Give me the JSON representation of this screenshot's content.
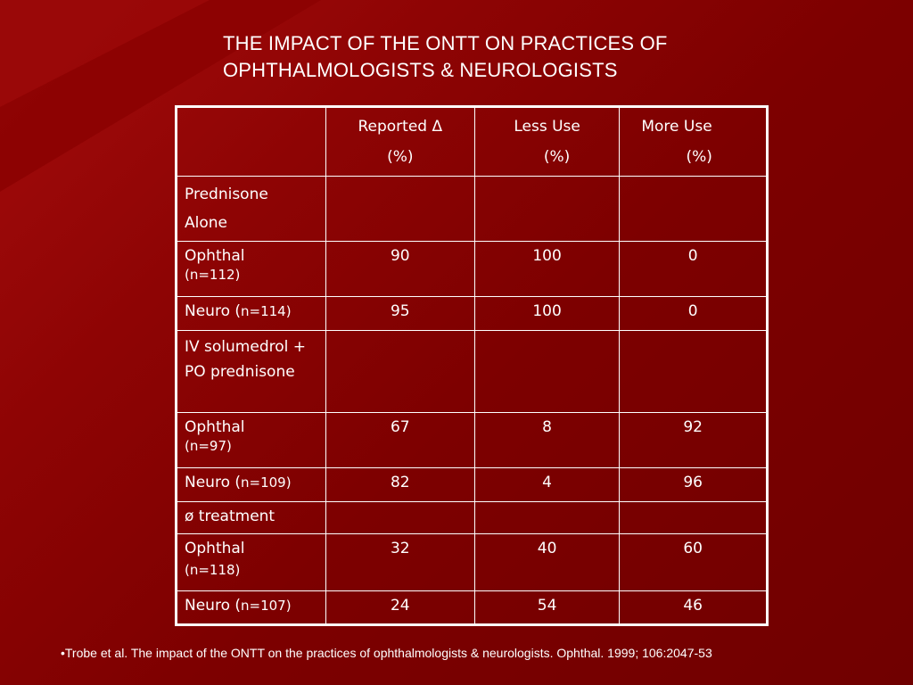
{
  "title": {
    "line1": "THE IMPACT OF THE ONTT ON PRACTICES OF",
    "line2": "OPHTHALMOLOGISTS & NEUROLOGISTS"
  },
  "table": {
    "headers": [
      {
        "line1": "",
        "line2": ""
      },
      {
        "line1": "Reported Δ",
        "line2": "(%)"
      },
      {
        "line1": "Less Use",
        "line2": "(%)"
      },
      {
        "line1": "More Use",
        "line2": "(%)"
      }
    ],
    "rows": [
      {
        "label": "Prednisone Alone",
        "sub": "",
        "values": [
          "",
          "",
          ""
        ]
      },
      {
        "label": "Ophthal",
        "sub": "(n=112)",
        "values": [
          "90",
          "100",
          "0"
        ]
      },
      {
        "label": "Neuro (",
        "sub": "n=114)",
        "values": [
          "95",
          "100",
          "0"
        ]
      },
      {
        "label": "IV solumedrol + PO prednisone",
        "sub": "",
        "values": [
          "",
          "",
          ""
        ]
      },
      {
        "label": "Ophthal",
        "sub": "(n=97)",
        "values": [
          "67",
          "8",
          "92"
        ]
      },
      {
        "label": "Neuro (",
        "sub": "n=109)",
        "values": [
          "82",
          "4",
          "96"
        ]
      },
      {
        "label": "ø treatment",
        "sub": "",
        "values": [
          "",
          "",
          ""
        ]
      },
      {
        "label": "Ophthal",
        "sub": "(n=118)",
        "values": [
          "32",
          "40",
          "60"
        ]
      },
      {
        "label": "Neuro (",
        "sub": "n=107)",
        "values": [
          "24",
          "54",
          "46"
        ]
      }
    ]
  },
  "footnote": "•Trobe et al.  The impact of the ONTT on the practices of ophthalmologists & neurologists.  Ophthal. 1999; 106:2047-53"
}
